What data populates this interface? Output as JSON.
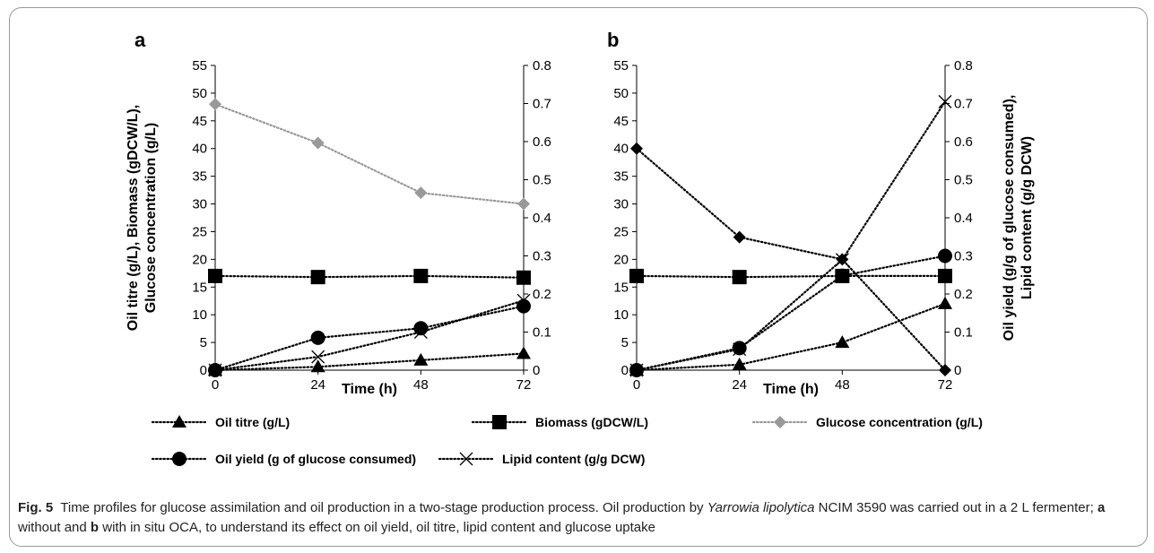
{
  "chart_data": [
    {
      "panel_label": "a",
      "type": "line",
      "x": [
        0,
        24,
        48,
        72
      ],
      "xlabel": "Time (h)",
      "ylabel_left": "Oil titre (g/L), Biomass (gDCW/L), Glucose concentration (g/L)",
      "ylabel_right": "",
      "ylim_left": [
        0,
        55
      ],
      "ylim_right": [
        0,
        0.8
      ],
      "yticks_left": [
        "0",
        "5",
        "10",
        "15",
        "20",
        "25",
        "30",
        "35",
        "40",
        "45",
        "50",
        "55"
      ],
      "yticks_right": [
        "0",
        "0.1",
        "0.2",
        "0.3",
        "0.4",
        "0.5",
        "0.6",
        "0.7",
        "0.8"
      ],
      "xticks": [
        "0",
        "24",
        "48",
        "72"
      ],
      "series": [
        {
          "name": "Oil titre (g/L)",
          "axis": "left",
          "marker": "triangle",
          "color": "#000000",
          "values": [
            0,
            0.6,
            1.8,
            3.0
          ]
        },
        {
          "name": "Biomass (gDCW/L)",
          "axis": "left",
          "marker": "square",
          "color": "#000000",
          "values": [
            17.0,
            16.8,
            17.0,
            16.7
          ]
        },
        {
          "name": "Glucose concentration (g/L)",
          "axis": "left",
          "marker": "diamond",
          "color": "#999999",
          "values": [
            48.0,
            41.0,
            32.0,
            30.0
          ]
        },
        {
          "name": "Oil yield (g of glucose consumed)",
          "axis": "right",
          "marker": "circle",
          "color": "#000000",
          "values": [
            0,
            0.085,
            0.11,
            0.168
          ]
        },
        {
          "name": "Lipid content (g/g DCW)",
          "axis": "right",
          "marker": "x",
          "color": "#000000",
          "values": [
            0,
            0.035,
            0.1,
            0.183
          ]
        }
      ]
    },
    {
      "panel_label": "b",
      "type": "line",
      "x": [
        0,
        24,
        48,
        72
      ],
      "xlabel": "Time (h)",
      "ylabel_left": "",
      "ylabel_right": "Oil yield (g/g of glucose consumed), Lipid content (g/g DCW)",
      "ylim_left": [
        0,
        55
      ],
      "ylim_right": [
        0,
        0.8
      ],
      "yticks_left": [
        "0",
        "5",
        "10",
        "15",
        "20",
        "25",
        "30",
        "35",
        "40",
        "45",
        "50",
        "55"
      ],
      "yticks_right": [
        "0",
        "0.1",
        "0.2",
        "0.3",
        "0.4",
        "0.5",
        "0.6",
        "0.7",
        "0.8"
      ],
      "xticks": [
        "0",
        "24",
        "48",
        "72"
      ],
      "series": [
        {
          "name": "Oil titre (g/L)",
          "axis": "left",
          "marker": "triangle",
          "color": "#000000",
          "values": [
            0,
            1.0,
            5.0,
            12.0
          ]
        },
        {
          "name": "Biomass (gDCW/L)",
          "axis": "left",
          "marker": "square",
          "color": "#000000",
          "values": [
            17.0,
            16.8,
            17.0,
            17.0
          ]
        },
        {
          "name": "Glucose concentration (g/L)",
          "axis": "left",
          "marker": "diamond",
          "color": "#000000",
          "values": [
            40.0,
            24.0,
            20.0,
            0
          ]
        },
        {
          "name": "Oil yield (g of glucose consumed)",
          "axis": "right",
          "marker": "circle",
          "color": "#000000",
          "values": [
            0,
            0.058,
            0.248,
            0.3
          ]
        },
        {
          "name": "Lipid content (g/g DCW)",
          "axis": "right",
          "marker": "x",
          "color": "#000000",
          "values": [
            0,
            0.055,
            0.29,
            0.705
          ]
        }
      ]
    }
  ],
  "legend": [
    {
      "label": "Oil titre (g/L)",
      "marker": "triangle",
      "color": "#000000"
    },
    {
      "label": "Biomass (gDCW/L)",
      "marker": "square",
      "color": "#000000"
    },
    {
      "label": "Glucose concentration (g/L)",
      "marker": "diamond",
      "color": "#999999"
    },
    {
      "label": "Oil yield (g of glucose consumed)",
      "marker": "circle",
      "color": "#000000"
    },
    {
      "label": "Lipid content (g/g DCW)",
      "marker": "x",
      "color": "#000000"
    }
  ],
  "caption": {
    "fig_label": "Fig. 5",
    "text_1": "Time profiles for glucose assimilation and oil production in a two-stage production process. Oil production by",
    "organism": "Yarrowia lipolytica",
    "text_2": "NCIM 3590 was carried out in a 2 L fermenter;",
    "panel_a": "a",
    "text_3": "without and",
    "panel_b": "b",
    "text_4": "with in situ OCA, to understand its effect on oil yield, oil titre, lipid content and glucose uptake"
  }
}
